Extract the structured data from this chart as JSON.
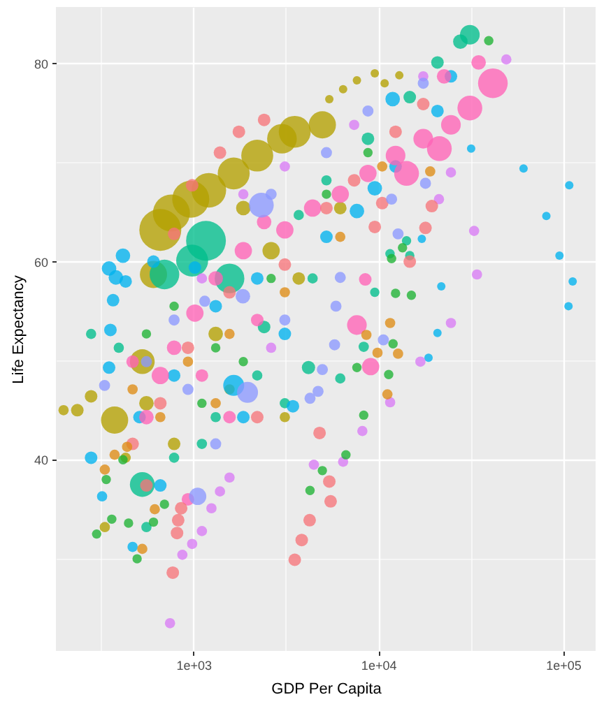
{
  "chart_data": {
    "type": "bubble",
    "xlabel": "GDP Per Capita",
    "ylabel": "Life Expectancy",
    "log": "x",
    "grid": true,
    "xlim": [
      180,
      150000
    ],
    "ylim": [
      20.7,
      85.7
    ],
    "xticks": [
      {
        "value": 316.2,
        "label": null
      },
      {
        "value": 1000,
        "label": "1e+03"
      },
      {
        "value": 3162,
        "label": null
      },
      {
        "value": 10000,
        "label": "1e+04"
      },
      {
        "value": 31623,
        "label": null
      },
      {
        "value": 100000,
        "label": "1e+05"
      }
    ],
    "yticks": [
      {
        "value": 30,
        "label": null
      },
      40,
      {
        "value": 50,
        "label": null
      },
      60,
      {
        "value": 70,
        "label": null
      },
      80
    ],
    "series": [
      {
        "color": "#B3A000",
        "x": [
          661,
          759,
          966,
          1210,
          1650,
          2212,
          3010,
          3530,
          4980,
          607,
          528,
          374,
          279,
          235,
          198,
          9570,
          12990,
          10820,
          7660,
          6450,
          5430,
          1860,
          2630,
          1318,
          785,
          429,
          556,
          1566,
          3710,
          6225,
          331,
          3120
        ],
        "values": [
          63.2,
          64.9,
          66.3,
          67.2,
          68.9,
          70.7,
          72.4,
          73.1,
          73.8,
          58.7,
          49.9,
          44.0,
          46.4,
          45.0,
          45.0,
          79.0,
          78.8,
          78.0,
          78.3,
          77.4,
          76.4,
          65.4,
          61.1,
          52.7,
          41.6,
          40.2,
          45.7,
          47.1,
          58.3,
          65.4,
          33.2,
          44.3
        ],
        "sizes": [
          1,
          0.78,
          0.78,
          0.68,
          0.58,
          0.58,
          0.5,
          0.58,
          0.42,
          0.42,
          0.35,
          0.42,
          0.09,
          0.09,
          0.06,
          0.04,
          0.04,
          0.04,
          0.04,
          0.04,
          0.04,
          0.12,
          0.17,
          0.12,
          0.09,
          0.06,
          0.12,
          0.06,
          0.09,
          0.09,
          0.06,
          0.06
        ]
      },
      {
        "color": "#00BE8C",
        "x": [
          1168,
          983,
          696,
          1566,
          528,
          31300,
          27800,
          20900,
          14800,
          8790,
          5240,
          3710,
          11570,
          14220,
          14800,
          9570,
          4190,
          2212,
          1318,
          785,
          394,
          279,
          556,
          1110,
          2410,
          3120,
          6225,
          8340,
          4410
        ],
        "values": [
          62.1,
          60.1,
          58.7,
          58.3,
          37.5,
          82.9,
          82.2,
          80.1,
          76.6,
          72.4,
          68.2,
          64.7,
          60.8,
          62.1,
          60.6,
          56.9,
          49.3,
          48.5,
          44.3,
          40.2,
          51.3,
          52.7,
          33.2,
          41.6,
          53.4,
          45.7,
          48.2,
          51.4,
          58.3
        ],
        "sizes": [
          0.9,
          0.58,
          0.5,
          0.5,
          0.35,
          0.22,
          0.12,
          0.09,
          0.09,
          0.09,
          0.06,
          0.06,
          0.05,
          0.05,
          0.05,
          0.05,
          0.1,
          0.06,
          0.06,
          0.06,
          0.06,
          0.06,
          0.06,
          0.06,
          0.09,
          0.06,
          0.06,
          0.06,
          0.06
        ]
      },
      {
        "color": "#00B2EE",
        "x": [
          349,
          415,
          380,
          429,
          367,
          355,
          607,
          1017,
          349,
          320,
          468,
          1650,
          11960,
          9570,
          7660,
          31800,
          61100,
          108000,
          81200,
          95600,
          112700,
          107000,
          21920,
          20900,
          18700,
          17200,
          1318,
          2212,
          5240,
          785,
          510,
          279,
          12400,
          20900,
          24720,
          3120,
          1860,
          661,
          3450
        ],
        "values": [
          59.3,
          60.6,
          58.4,
          58.0,
          56.1,
          53.1,
          60.0,
          59.4,
          49.3,
          36.3,
          31.2,
          47.5,
          76.4,
          67.4,
          65.1,
          71.4,
          69.4,
          67.7,
          64.6,
          60.6,
          58.0,
          55.5,
          57.5,
          52.8,
          50.3,
          62.3,
          55.5,
          58.3,
          62.5,
          48.5,
          44.3,
          40.2,
          69.6,
          75.2,
          78.7,
          52.7,
          44.3,
          37.4,
          45.4
        ],
        "sizes": [
          0.12,
          0.12,
          0.12,
          0.09,
          0.09,
          0.09,
          0.09,
          0.09,
          0.09,
          0.06,
          0.06,
          0.25,
          0.12,
          0.12,
          0.12,
          0.04,
          0.04,
          0.04,
          0.04,
          0.04,
          0.04,
          0.04,
          0.04,
          0.04,
          0.04,
          0.04,
          0.09,
          0.09,
          0.09,
          0.09,
          0.09,
          0.09,
          0.09,
          0.09,
          0.09,
          0.09,
          0.09,
          0.09,
          0.09
        ]
      },
      {
        "color": "#FF63B6",
        "x": [
          41700,
          31300,
          21400,
          14220,
          24720,
          17510,
          12400,
          8790,
          6225,
          4410,
          3120,
          2410,
          1860,
          1318,
          1017,
          785,
          661,
          556,
          34910,
          22700,
          7660,
          9090,
          8500,
          468,
          1110,
          2212,
          1566,
          933
        ],
        "values": [
          78.0,
          75.5,
          71.4,
          68.9,
          73.8,
          72.4,
          70.7,
          68.9,
          66.8,
          65.4,
          63.2,
          64.0,
          61.1,
          58.3,
          54.8,
          51.3,
          48.5,
          44.3,
          80.1,
          78.7,
          53.6,
          49.4,
          58.2,
          49.9,
          48.5,
          54.1,
          44.3,
          36.0
        ],
        "sizes": [
          0.5,
          0.35,
          0.35,
          0.35,
          0.22,
          0.22,
          0.22,
          0.17,
          0.17,
          0.17,
          0.17,
          0.12,
          0.17,
          0.12,
          0.17,
          0.12,
          0.17,
          0.12,
          0.12,
          0.12,
          0.22,
          0.17,
          0.09,
          0.09,
          0.09,
          0.09,
          0.09,
          0.09
        ]
      },
      {
        "color": "#D97BF5",
        "x": [
          11590,
          8200,
          6450,
          4480,
          16900,
          24720,
          24720,
          33000,
          34200,
          21300,
          746,
          983,
          1110,
          1250,
          1390,
          1566,
          870,
          3120,
          1860,
          7400,
          1110,
          2630,
          17510,
          49300
        ],
        "values": [
          45.8,
          42.9,
          39.8,
          39.5,
          49.9,
          53.8,
          69.0,
          63.1,
          58.7,
          66.3,
          23.5,
          31.5,
          32.8,
          35.1,
          36.8,
          38.2,
          30.4,
          69.6,
          66.8,
          73.8,
          58.3,
          51.3,
          78.7,
          80.4
        ],
        "sizes": [
          0.06,
          0.06,
          0.06,
          0.06,
          0.06,
          0.06,
          0.06,
          0.06,
          0.06,
          0.06,
          0.06,
          0.06,
          0.06,
          0.06,
          0.06,
          0.06,
          0.06,
          0.06,
          0.06,
          0.06,
          0.06,
          0.06,
          0.06,
          0.06
        ]
      },
      {
        "color": "#F6757A",
        "x": [
          2410,
          1760,
          1390,
          983,
          785,
          3530,
          3850,
          4250,
          5520,
          5430,
          4810,
          19480,
          18000,
          14800,
          10500,
          9570,
          772,
          814,
          826,
          857,
          556,
          1566,
          933,
          661,
          468,
          3120,
          7400,
          12400,
          17510,
          5240,
          2212
        ],
        "values": [
          74.3,
          73.1,
          71.0,
          67.7,
          62.8,
          29.9,
          31.9,
          33.9,
          35.8,
          37.8,
          42.7,
          65.6,
          63.4,
          60.0,
          65.9,
          63.5,
          28.6,
          32.6,
          33.9,
          35.1,
          37.4,
          56.9,
          51.3,
          45.7,
          41.6,
          59.7,
          68.2,
          73.1,
          75.9,
          65.4,
          44.3
        ],
        "sizes": [
          0.09,
          0.09,
          0.09,
          0.09,
          0.09,
          0.09,
          0.09,
          0.09,
          0.09,
          0.09,
          0.09,
          0.09,
          0.09,
          0.09,
          0.09,
          0.09,
          0.09,
          0.09,
          0.09,
          0.09,
          0.09,
          0.09,
          0.09,
          0.09,
          0.09,
          0.09,
          0.09,
          0.09,
          0.09,
          0.09,
          0.09
        ]
      },
      {
        "color": "#8C98FF",
        "x": [
          2328,
          1850,
          1053,
          1960,
          18000,
          12790,
          11800,
          10650,
          5900,
          6225,
          4720,
          4270,
          4980,
          5800,
          1150,
          2630,
          5240,
          8790,
          17510,
          785,
          556,
          330,
          1318,
          933,
          3120
        ],
        "values": [
          65.7,
          56.5,
          36.3,
          46.8,
          67.9,
          62.8,
          66.3,
          52.1,
          55.5,
          58.4,
          46.9,
          46.2,
          49.1,
          51.6,
          56.0,
          66.8,
          71.0,
          75.2,
          78.0,
          54.1,
          49.9,
          47.5,
          41.6,
          47.1,
          54.1
        ],
        "sizes": [
          0.35,
          0.12,
          0.17,
          0.25,
          0.07,
          0.07,
          0.07,
          0.07,
          0.07,
          0.07,
          0.07,
          0.07,
          0.07,
          0.07,
          0.07,
          0.07,
          0.07,
          0.07,
          0.07,
          0.07,
          0.07,
          0.07,
          0.07,
          0.07,
          0.07
        ]
      },
      {
        "color": "#DE8C14",
        "x": [
          19090,
          11590,
          12790,
          9900,
          11200,
          8620,
          331,
          374,
          437,
          528,
          617,
          933,
          1566,
          3120,
          6225,
          10500,
          661,
          468,
          1318
        ],
        "values": [
          69.1,
          53.8,
          50.7,
          50.8,
          46.6,
          52.6,
          39.0,
          40.5,
          41.3,
          31.0,
          35.0,
          49.9,
          52.7,
          56.9,
          62.5,
          69.6,
          44.3,
          47.1,
          45.7
        ],
        "sizes": [
          0.06,
          0.06,
          0.06,
          0.06,
          0.06,
          0.06,
          0.06,
          0.06,
          0.06,
          0.06,
          0.06,
          0.06,
          0.06,
          0.06,
          0.06,
          0.06,
          0.06,
          0.06,
          0.06
        ]
      },
      {
        "color": "#1DB233",
        "x": [
          11800,
          12400,
          15100,
          13520,
          39600,
          8340,
          6680,
          4980,
          4270,
          11380,
          7660,
          12020,
          299,
          495,
          361,
          445,
          607,
          415,
          337,
          696,
          785,
          1318,
          2630,
          5240,
          8790,
          556,
          1860,
          1110
        ],
        "values": [
          60.3,
          56.8,
          56.6,
          61.4,
          82.3,
          44.5,
          40.5,
          38.9,
          36.9,
          48.6,
          49.3,
          51.7,
          32.5,
          30.0,
          34.0,
          33.6,
          33.7,
          40.0,
          38.0,
          35.5,
          55.5,
          51.3,
          58.3,
          66.8,
          71.0,
          52.7,
          49.9,
          45.7
        ],
        "sizes": [
          0.05,
          0.05,
          0.05,
          0.05,
          0.05,
          0.05,
          0.05,
          0.05,
          0.05,
          0.05,
          0.05,
          0.05,
          0.05,
          0.05,
          0.05,
          0.05,
          0.05,
          0.05,
          0.05,
          0.05,
          0.05,
          0.05,
          0.05,
          0.05,
          0.05,
          0.05,
          0.05,
          0.05
        ]
      }
    ]
  }
}
